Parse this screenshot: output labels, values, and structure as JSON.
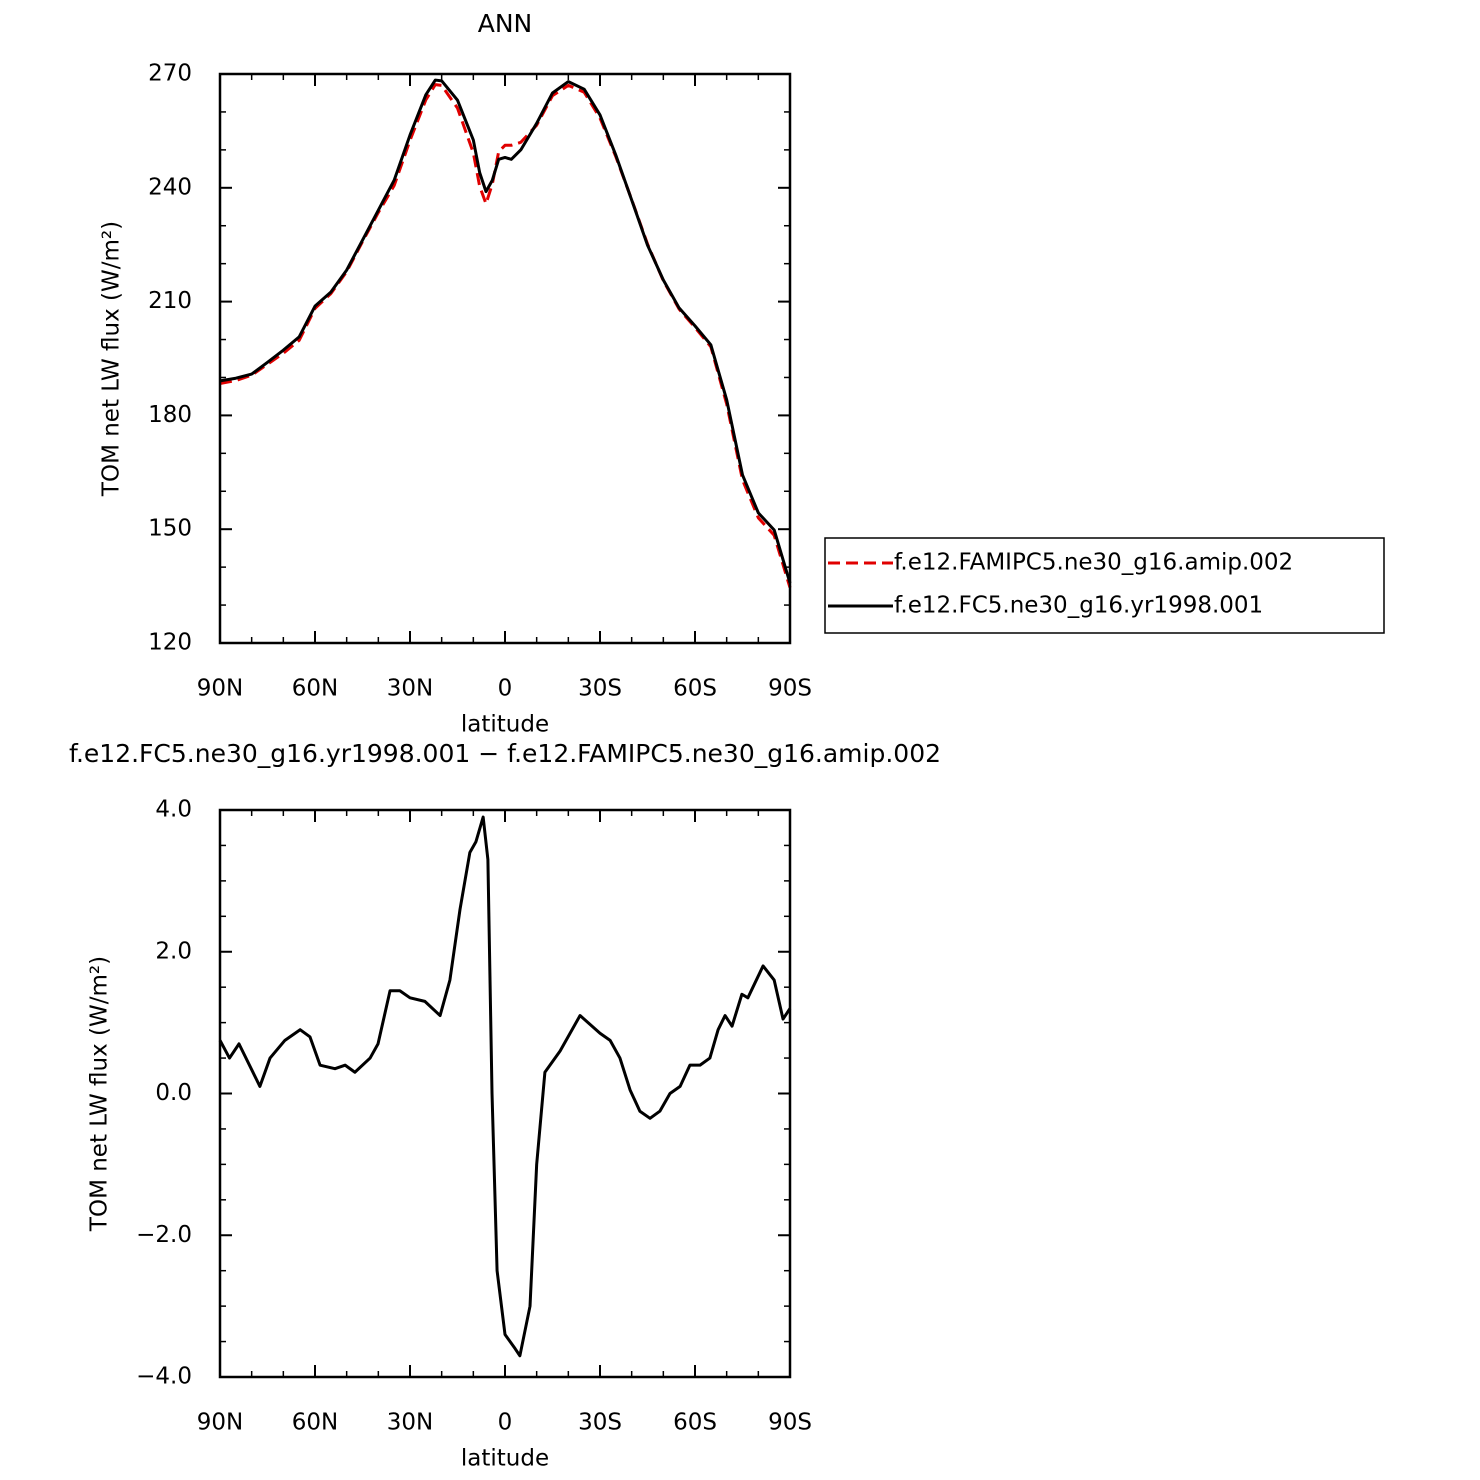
{
  "chart_data": [
    {
      "type": "line",
      "title": "ANN",
      "xlabel": "latitude",
      "ylabel": "TOM net LW flux (W/m²)",
      "x": [
        90,
        85,
        80,
        75,
        70,
        65,
        60,
        55,
        50,
        45,
        40,
        35,
        30,
        25,
        22,
        20,
        15,
        10,
        8,
        6,
        4,
        2,
        0,
        -2,
        -5,
        -10,
        -15,
        -20,
        -25,
        -30,
        -35,
        -40,
        -45,
        -50,
        -55,
        -60,
        -65,
        -70,
        -75,
        -80,
        -85,
        -90
      ],
      "series": [
        {
          "name": "f.e12.FAMIPC5.ne30_g16.amip.002",
          "color": "#e00000",
          "dashed": true,
          "values": [
            188.4,
            189.2,
            190.6,
            193.5,
            196.4,
            199.8,
            208.2,
            212.1,
            217.9,
            225.8,
            233.5,
            240.6,
            252.5,
            263.2,
            267.2,
            267,
            261,
            249.2,
            240.4,
            235.8,
            241,
            249.5,
            251.2,
            251.2,
            252,
            256.5,
            264.3,
            267,
            265.2,
            258.4,
            248.2,
            236.9,
            225.2,
            215.5,
            208,
            203.2,
            198.1,
            183,
            163,
            153,
            148.4,
            134.6
          ]
        },
        {
          "name": "f.e12.FC5.ne30_g16.yr1998.001",
          "color": "#000000",
          "dashed": false,
          "values": [
            189.1,
            189.8,
            190.9,
            194,
            197.2,
            200.7,
            208.8,
            212.5,
            218.3,
            226.2,
            234.1,
            242,
            253.9,
            264.5,
            268.4,
            268.2,
            263.1,
            252.6,
            244,
            239,
            242,
            247.5,
            248,
            247.5,
            250,
            257,
            265,
            268,
            266,
            259.2,
            248.6,
            236.8,
            224.9,
            215.7,
            208.3,
            203.6,
            198.6,
            184.1,
            164.3,
            154.3,
            149.8,
            135.8
          ]
        }
      ],
      "xlim": [
        90,
        -90
      ],
      "xticks": [
        {
          "value": 90,
          "label": "90N"
        },
        {
          "value": 60,
          "label": "60N"
        },
        {
          "value": 30,
          "label": "30N"
        },
        0,
        {
          "value": -30,
          "label": "30S"
        },
        {
          "value": -60,
          "label": "60S"
        },
        {
          "value": -90,
          "label": "90S"
        }
      ],
      "xminorticks": [
        80,
        70,
        50,
        40,
        20,
        10,
        -10,
        -20,
        -40,
        -50,
        -70,
        -80
      ],
      "ylim": [
        120,
        270
      ],
      "yticks": [
        120,
        150,
        180,
        210,
        240,
        270
      ],
      "yminorticks": [
        130,
        140,
        160,
        170,
        190,
        200,
        220,
        230,
        250,
        260
      ],
      "legend": "outside right"
    },
    {
      "type": "line",
      "title": "f.e12.FC5.ne30_g16.yr1998.001 − f.e12.FAMIPC5.ne30_g16.amip.002",
      "xlabel": "latitude",
      "ylabel": "TOM net LW flux (W/m²)",
      "x": [
        90,
        87,
        84,
        77.4,
        74.2,
        69.5,
        64.7,
        61.6,
        58.4,
        53.7,
        50.5,
        47.4,
        42.6,
        40.1,
        36.3,
        33.2,
        30,
        25.3,
        20.5,
        17.4,
        14.2,
        11.1,
        9.2,
        6.9,
        5.4,
        4.1,
        2.5,
        0,
        -3.2,
        -4.7,
        -7.9,
        -10,
        -12.6,
        -17.4,
        -23.7,
        -30,
        -33.2,
        -36.3,
        -39.5,
        -42.6,
        -45.8,
        -48.9,
        -52.1,
        -55.3,
        -58.4,
        -61.6,
        -64.7,
        -67.3,
        -69.5,
        -71.7,
        -74.8,
        -76.7,
        -81.5,
        -85,
        -87.8,
        -90
      ],
      "values": [
        0.75,
        0.5,
        0.7,
        0.1,
        0.5,
        0.75,
        0.9,
        0.8,
        0.4,
        0.35,
        0.4,
        0.3,
        0.5,
        0.7,
        1.45,
        1.45,
        1.35,
        1.3,
        1.1,
        1.6,
        2.6,
        3.4,
        3.55,
        3.9,
        3.3,
        0,
        -2.5,
        -3.4,
        -3.6,
        -3.7,
        -3,
        -1,
        0.3,
        0.6,
        1.1,
        0.85,
        0.75,
        0.5,
        0.05,
        -0.25,
        -0.35,
        -0.25,
        0,
        0.1,
        0.4,
        0.4,
        0.5,
        0.9,
        1.1,
        0.95,
        1.4,
        1.35,
        1.8,
        1.6,
        1.05,
        1.2
      ],
      "color": "#000000",
      "xlim": [
        90,
        -90
      ],
      "xticks": [
        {
          "value": 90,
          "label": "90N"
        },
        {
          "value": 60,
          "label": "60N"
        },
        {
          "value": 30,
          "label": "30N"
        },
        0,
        {
          "value": -30,
          "label": "30S"
        },
        {
          "value": -60,
          "label": "60S"
        },
        {
          "value": -90,
          "label": "90S"
        }
      ],
      "xminorticks": [
        80,
        70,
        50,
        40,
        20,
        10,
        -10,
        -20,
        -40,
        -50,
        -70,
        -80
      ],
      "ylim": [
        -4,
        4
      ],
      "yticks": [
        {
          "value": -4,
          "label": "−4.0"
        },
        {
          "value": -2,
          "label": "−2.0"
        },
        {
          "value": 0,
          "label": "0.0"
        },
        {
          "value": 2,
          "label": "2.0"
        },
        {
          "value": 4,
          "label": "4.0"
        }
      ],
      "yminorticks": [
        -3.5,
        -3,
        -2.5,
        -1.5,
        -1,
        -0.5,
        0.5,
        1,
        1.5,
        2.5,
        3,
        3.5
      ]
    }
  ]
}
